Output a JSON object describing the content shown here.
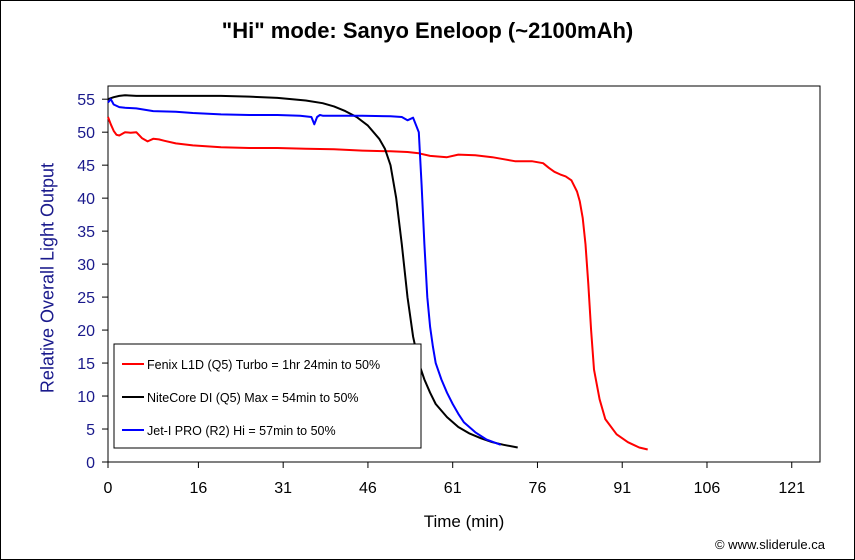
{
  "chart_data": {
    "type": "line",
    "title": "\"Hi\" mode: Sanyo Eneloop (~2100mAh)",
    "xlabel": "Time (min)",
    "ylabel": "Relative Overall Light Output",
    "xlim": [
      0,
      126
    ],
    "ylim": [
      0,
      57
    ],
    "xticks": [
      0,
      16,
      31,
      46,
      61,
      76,
      91,
      106,
      121
    ],
    "yticks": [
      0,
      5,
      10,
      15,
      20,
      25,
      30,
      35,
      40,
      45,
      50,
      55
    ],
    "grid": false,
    "legend_position": "bottom-left",
    "series": [
      {
        "name": "Fenix L1D (Q5) Turbo = 1hr 24min to 50%",
        "color": "#ff0000",
        "x": [
          0,
          0.5,
          1,
          1.5,
          2,
          3,
          4,
          5,
          6,
          7,
          8,
          9,
          10,
          12,
          15,
          20,
          25,
          30,
          35,
          40,
          45,
          50,
          53,
          55,
          57,
          60,
          62,
          65,
          68,
          70,
          72,
          75,
          77,
          78,
          79,
          80,
          81,
          82,
          83,
          83.5,
          84,
          84.5,
          85,
          85.5,
          86,
          87,
          88,
          90,
          92,
          94,
          95.5
        ],
        "values": [
          52.3,
          51.2,
          50.2,
          49.6,
          49.5,
          50.0,
          49.9,
          50.0,
          49.1,
          48.6,
          49.0,
          48.9,
          48.7,
          48.3,
          48.0,
          47.7,
          47.6,
          47.6,
          47.5,
          47.4,
          47.2,
          47.1,
          47.0,
          46.8,
          46.4,
          46.2,
          46.6,
          46.5,
          46.2,
          45.9,
          45.6,
          45.6,
          45.3,
          44.6,
          44.0,
          43.6,
          43.3,
          42.7,
          41.0,
          39.5,
          37.0,
          33.0,
          27.0,
          20.0,
          14.0,
          9.5,
          6.5,
          4.2,
          3.0,
          2.2,
          1.9
        ]
      },
      {
        "name": "NiteCore DI (Q5) Max = 54min to 50%",
        "color": "#000000",
        "x": [
          0,
          1,
          2,
          3,
          5,
          10,
          15,
          20,
          25,
          30,
          35,
          38,
          40,
          42,
          44,
          46,
          48,
          49,
          50,
          51,
          52,
          53,
          54,
          55,
          56,
          57,
          58,
          60,
          62,
          64,
          66,
          68,
          70,
          72.5
        ],
        "values": [
          55.0,
          55.3,
          55.5,
          55.6,
          55.5,
          55.5,
          55.5,
          55.5,
          55.4,
          55.2,
          54.8,
          54.4,
          53.9,
          53.2,
          52.3,
          51.0,
          49.0,
          47.5,
          45.0,
          40.0,
          33.0,
          25.0,
          19.0,
          15.0,
          12.5,
          10.5,
          8.8,
          6.8,
          5.3,
          4.3,
          3.6,
          3.0,
          2.6,
          2.2
        ]
      },
      {
        "name": "Jet-I PRO (R2) Hi = 57min to 50%",
        "color": "#0000ff",
        "x": [
          0,
          0.5,
          1,
          2,
          3,
          5,
          8,
          12,
          15,
          20,
          25,
          30,
          34,
          36,
          36.5,
          37,
          37.5,
          38,
          40,
          45,
          50,
          52,
          53,
          54,
          55,
          55.5,
          56,
          56.5,
          57,
          57.5,
          58,
          59,
          60,
          61,
          62,
          63,
          65,
          67,
          69.5
        ],
        "values": [
          54.5,
          55.0,
          54.2,
          53.8,
          53.7,
          53.6,
          53.2,
          53.1,
          52.9,
          52.7,
          52.6,
          52.6,
          52.5,
          52.3,
          51.2,
          52.3,
          52.6,
          52.5,
          52.5,
          52.5,
          52.4,
          52.3,
          51.8,
          52.2,
          50.0,
          42.0,
          33.0,
          25.0,
          20.5,
          17.5,
          15.0,
          12.5,
          10.5,
          8.8,
          7.3,
          6.0,
          4.5,
          3.4,
          2.6
        ]
      }
    ]
  },
  "credit": "© www.sliderule.ca"
}
